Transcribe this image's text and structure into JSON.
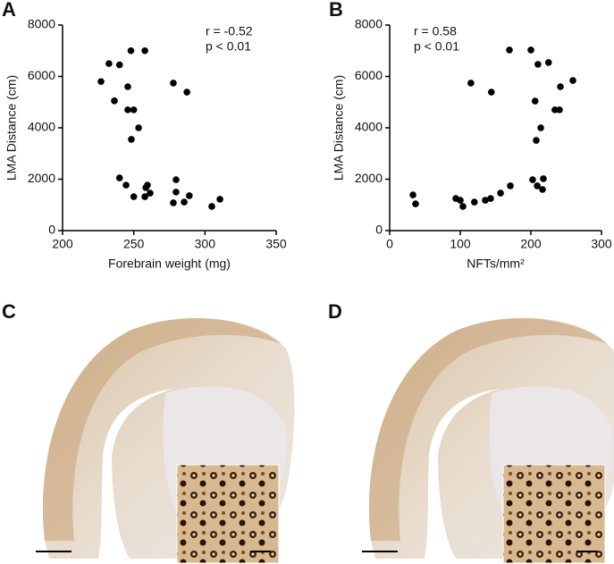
{
  "chart_data": [
    {
      "type": "scatter",
      "panel_label": "A",
      "xlabel": "Forebrain weight (mg)",
      "ylabel": "LMA Distance (cm)",
      "annotations": [
        "r = -0.52",
        "p < 0.01"
      ],
      "color": "#000000",
      "xlim": [
        200,
        350
      ],
      "xticks": [
        200,
        250,
        300,
        350
      ],
      "ylim": [
        0,
        8000
      ],
      "yticks": [
        0,
        2000,
        4000,
        6000,
        8000
      ],
      "x": [
        227,
        232.6,
        240,
        248,
        257.8,
        236.4,
        245.8,
        245.8,
        250,
        253.4,
        248.3,
        240,
        244.6,
        250,
        257.8,
        258.5,
        259.6,
        261.5,
        277.8,
        287.3,
        279.7,
        279.7,
        277.8,
        285.4,
        289,
        304.8,
        310.5
      ],
      "values": [
        5800,
        6500,
        6450,
        7000,
        7000,
        5050,
        5600,
        4700,
        4700,
        4000,
        3550,
        2050,
        1770,
        1320,
        1320,
        1670,
        1770,
        1460,
        5740,
        5390,
        1980,
        1500,
        1080,
        1110,
        1360,
        940,
        1220
      ]
    },
    {
      "type": "scatter",
      "panel_label": "B",
      "xlabel": "NFTs/mm²",
      "ylabel": "LMA Distance (cm)",
      "annotations": [
        "r = 0.58",
        "p < 0.01"
      ],
      "color": "#000000",
      "xlim": [
        0,
        300
      ],
      "xticks": [
        0,
        100,
        200,
        300
      ],
      "ylim": [
        0,
        8000
      ],
      "yticks": [
        0,
        2000,
        4000,
        6000,
        8000
      ],
      "x": [
        33,
        36.7,
        93.7,
        100,
        103.8,
        120,
        135.4,
        143,
        157,
        170.9,
        115,
        144,
        169.6,
        200,
        210,
        225,
        206,
        214,
        207.6,
        234,
        240.5,
        241.8,
        259.5,
        202.5,
        209,
        217.7,
        216.5
      ],
      "values": [
        1390,
        1040,
        1250,
        1180,
        940,
        1110,
        1180,
        1250,
        1460,
        1740,
        5740,
        5390,
        7030,
        7030,
        6470,
        6540,
        5040,
        4000,
        3510,
        4700,
        4700,
        5600,
        5840,
        1980,
        1740,
        2020,
        1600
      ]
    }
  ],
  "image_panels": [
    "C",
    "D"
  ]
}
